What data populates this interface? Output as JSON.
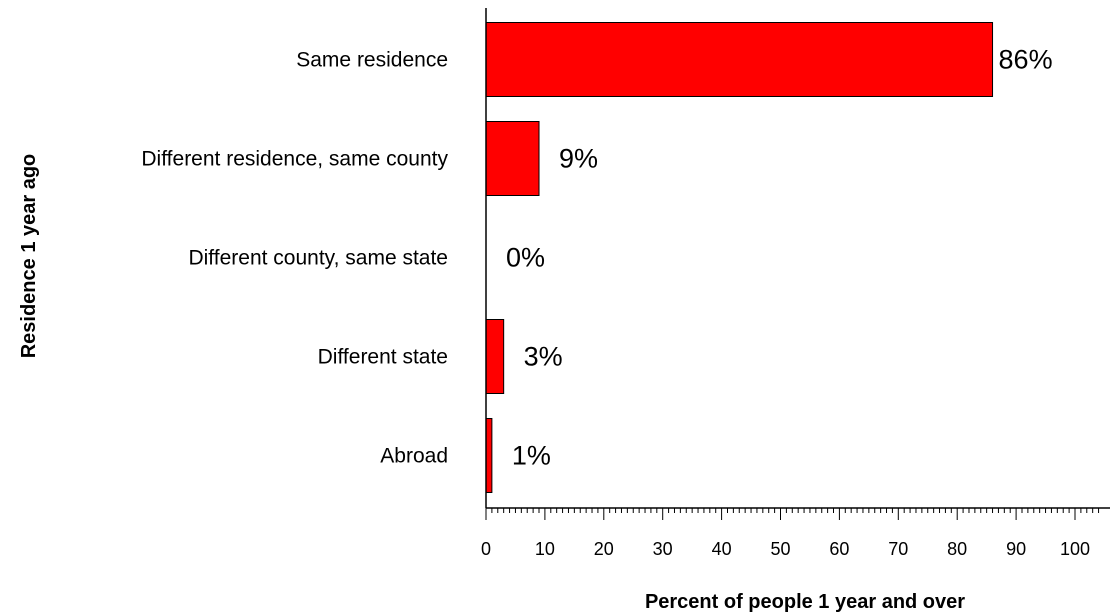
{
  "chart_data": {
    "type": "bar",
    "orientation": "horizontal",
    "categories": [
      "Same residence",
      "Different residence, same county",
      "Different county, same state",
      "Different state",
      "Abroad"
    ],
    "values": [
      86,
      9,
      0,
      3,
      1
    ],
    "value_labels": [
      "86%",
      "9%",
      "0%",
      "3%",
      "1%"
    ],
    "xlabel": "Percent of people 1 year and over",
    "ylabel": "Residence 1 year ago",
    "xlim": [
      0,
      100
    ],
    "xticks": [
      0,
      10,
      20,
      30,
      40,
      50,
      60,
      70,
      80,
      90,
      100
    ],
    "grid": false,
    "bar_color": "#ff0000"
  }
}
